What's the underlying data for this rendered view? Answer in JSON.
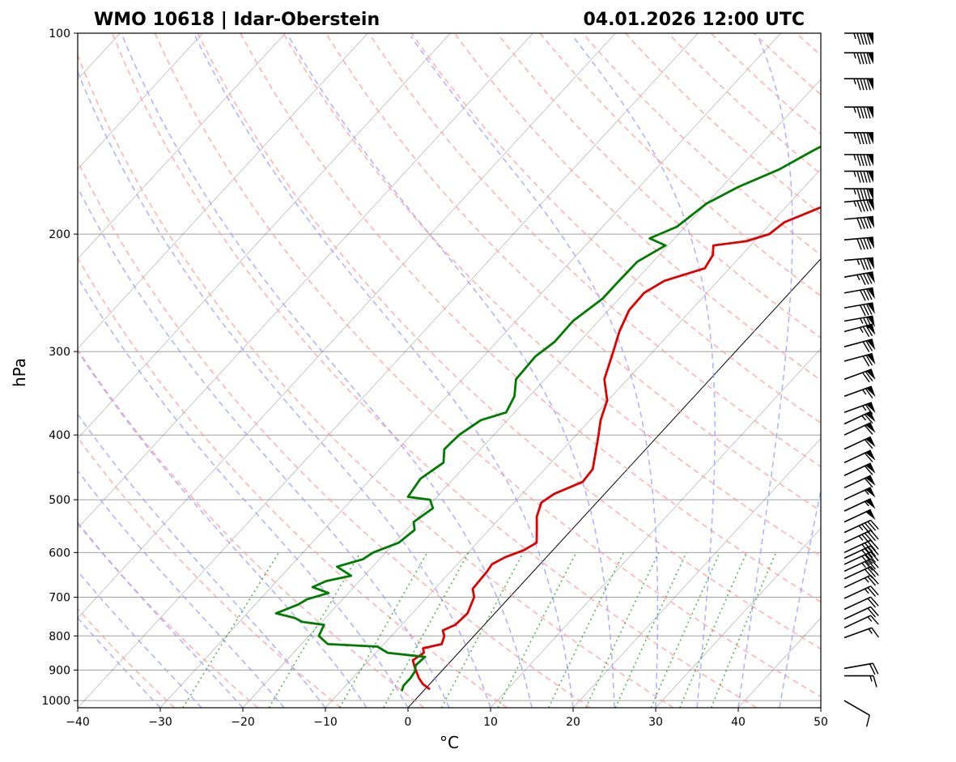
{
  "chart_data": {
    "type": "skew-t",
    "title_left": "WMO 10618 | Idar-Oberstein",
    "title_right": "04.01.2026 12:00 UTC",
    "xlabel": "°C",
    "ylabel": "hPa",
    "xlim": [
      -40,
      50
    ],
    "ylim": [
      1025,
      100
    ],
    "x_ticks": [
      -40,
      -30,
      -20,
      -10,
      0,
      10,
      20,
      30,
      40,
      50
    ],
    "x_tick_labels": [
      "−40",
      "−30",
      "−20",
      "−10",
      "0",
      "10",
      "20",
      "30",
      "40",
      "50"
    ],
    "y_ticks": [
      100,
      200,
      300,
      400,
      500,
      600,
      700,
      800,
      900,
      1000
    ],
    "y_tick_labels": [
      "100",
      "200",
      "300",
      "400",
      "500",
      "600",
      "700",
      "800",
      "900",
      "1000"
    ],
    "temperature": {
      "color": "#e00000",
      "p": [
        962,
        945,
        925,
        905,
        885,
        870,
        862,
        848,
        835,
        823,
        800,
        785,
        770,
        740,
        700,
        680,
        660,
        640,
        625,
        610,
        595,
        580,
        555,
        530,
        505,
        490,
        470,
        450,
        425,
        400,
        380,
        355,
        330,
        300,
        280,
        260,
        245,
        235,
        225,
        215,
        208,
        205,
        200,
        192,
        185,
        178,
        170,
        163,
        160,
        150,
        140,
        130,
        122,
        115,
        108,
        103,
        100
      ],
      "t": [
        0.6,
        -0.8,
        -2.0,
        -3.0,
        -4.0,
        -4.7,
        -4.5,
        -4.2,
        -4.8,
        -3.0,
        -3.6,
        -4.4,
        -3.5,
        -3.3,
        -4.3,
        -5.4,
        -5.5,
        -5.6,
        -5.8,
        -5.0,
        -3.5,
        -2.8,
        -4.2,
        -5.7,
        -6.7,
        -6.1,
        -4.0,
        -4.2,
        -5.7,
        -7.3,
        -8.7,
        -10.1,
        -12.8,
        -14.8,
        -16.3,
        -17.5,
        -17.6,
        -16.5,
        -13.0,
        -13.5,
        -14.5,
        -11.0,
        -9.0,
        -8.5,
        -6.5,
        -4.5,
        -1.0,
        0.5,
        2.0,
        3.5,
        5.0,
        6.0,
        7.5,
        9.0,
        10.2,
        11.5,
        12.0
      ]
    },
    "dewpoint": {
      "color": "#007a00",
      "p": [
        968,
        950,
        925,
        905,
        885,
        860,
        848,
        830,
        823,
        800,
        770,
        762,
        752,
        740,
        718,
        705,
        690,
        676,
        662,
        650,
        630,
        614,
        600,
        580,
        555,
        540,
        515,
        500,
        495,
        465,
        440,
        420,
        400,
        380,
        370,
        350,
        330,
        305,
        290,
        270,
        250,
        237,
        220,
        208,
        203,
        195,
        180,
        170,
        160,
        150,
        140,
        130,
        115,
        110,
        100
      ],
      "t": [
        -2.6,
        -3.0,
        -3.0,
        -3.2,
        -3.8,
        -3.6,
        -8.6,
        -10.5,
        -16.8,
        -18.8,
        -19.4,
        -22.4,
        -23.7,
        -26.5,
        -24.8,
        -24.3,
        -22.4,
        -25.0,
        -24.0,
        -21.6,
        -24.3,
        -22.0,
        -21.5,
        -19.5,
        -19.0,
        -20.0,
        -19.2,
        -20.5,
        -23.5,
        -24.0,
        -23.0,
        -24.4,
        -24.2,
        -23.2,
        -21.0,
        -21.8,
        -23.5,
        -23.7,
        -23.0,
        -23.1,
        -22.0,
        -22.0,
        -21.9,
        -20.3,
        -23.0,
        -21.0,
        -20.0,
        -18.0,
        -15.0,
        -13.0,
        -10.5,
        -8.0,
        -6.0,
        -3.0,
        3.0
      ]
    },
    "wind_barbs": {
      "p": [
        1000,
        918,
        895,
        805,
        778,
        755,
        730,
        703,
        677,
        657,
        640,
        625,
        612,
        600,
        580,
        560,
        540,
        520,
        500,
        480,
        460,
        440,
        420,
        400,
        385,
        370,
        350,
        330,
        310,
        295,
        280,
        270,
        258,
        245,
        232,
        219,
        204,
        190,
        179,
        171,
        161,
        152,
        141,
        129,
        117,
        107,
        100
      ],
      "speed_kt": [
        10,
        15,
        20,
        15,
        15,
        20,
        20,
        25,
        25,
        30,
        35,
        40,
        40,
        40,
        45,
        45,
        50,
        55,
        55,
        60,
        60,
        60,
        60,
        60,
        65,
        65,
        65,
        70,
        70,
        70,
        75,
        75,
        80,
        80,
        85,
        85,
        90,
        90,
        95,
        95,
        95,
        95,
        95,
        95,
        95,
        95,
        95
      ],
      "direction_deg": [
        300,
        270,
        260,
        250,
        245,
        245,
        245,
        245,
        245,
        245,
        245,
        245,
        245,
        245,
        245,
        245,
        245,
        245,
        245,
        245,
        245,
        245,
        245,
        245,
        245,
        250,
        250,
        250,
        255,
        255,
        255,
        260,
        260,
        260,
        260,
        265,
        265,
        265,
        265,
        270,
        270,
        270,
        270,
        270,
        270,
        270,
        270
      ]
    },
    "background": {
      "isotherm_color": "#000000",
      "isobar_color": "#a0a0a0",
      "dry_adiabat_color": "#ff9999",
      "moist_adiabat_color": "#9999ff",
      "mixing_ratio_color": "#33aa33",
      "mixing_ratios_gkg": [
        0.4,
        1,
        2,
        3,
        5,
        8,
        12,
        16,
        20,
        26,
        32,
        40
      ]
    }
  }
}
